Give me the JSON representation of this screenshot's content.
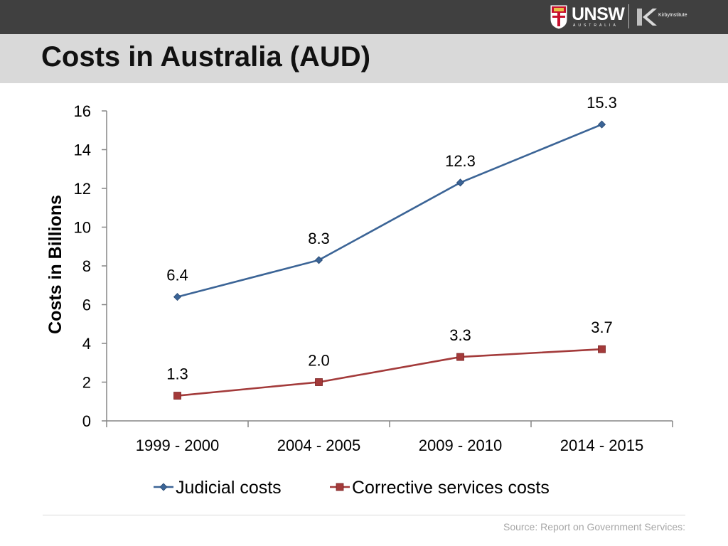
{
  "slide": {
    "title": "Costs in Australia (AUD)",
    "source": "Source: Report on Government Services:"
  },
  "logos": {
    "university": "UNSW",
    "university_sub": "AUSTRALIA",
    "institute": "KirbyInstitute"
  },
  "colors": {
    "top_bar": "#404040",
    "title_bar": "#d9d9d9",
    "judicial": "#3b6496",
    "corrective": "#a33a3a"
  },
  "chart_data": {
    "type": "line",
    "title": "",
    "xlabel": "",
    "ylabel": "Costs in Billions",
    "categories": [
      "1999 - 2000",
      "2004 - 2005",
      "2009 - 2010",
      "2014 - 2015"
    ],
    "ylim": [
      0,
      16
    ],
    "yticks": [
      "0",
      "2",
      "4",
      "6",
      "8",
      "10",
      "12",
      "14",
      "16"
    ],
    "grid": false,
    "legend_position": "bottom",
    "series": [
      {
        "name": "Judicial costs",
        "values": [
          6.4,
          8.3,
          12.3,
          15.3
        ],
        "labels": [
          "6.4",
          "8.3",
          "12.3",
          "15.3"
        ],
        "color": "#3b6496",
        "marker": "diamond"
      },
      {
        "name": "Corrective services costs",
        "values": [
          1.3,
          2.0,
          3.3,
          3.7
        ],
        "labels": [
          "1.3",
          "2.0",
          "3.3",
          "3.7"
        ],
        "color": "#a33a3a",
        "marker": "square"
      }
    ]
  }
}
